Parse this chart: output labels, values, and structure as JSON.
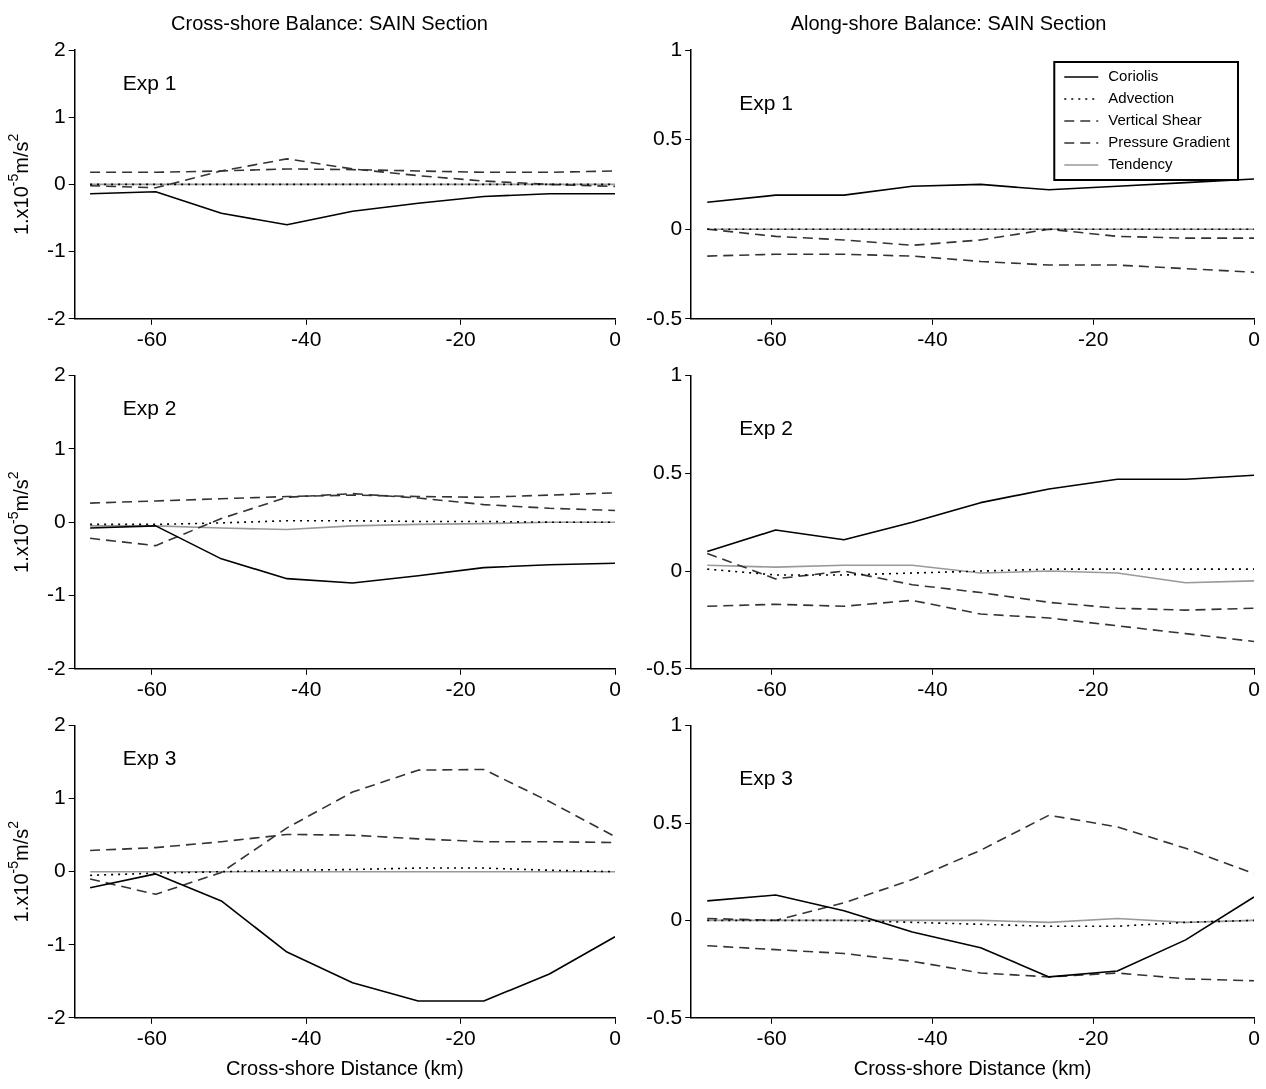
{
  "chart_data": [
    {
      "type": "line",
      "title": "Cross-shore Balance: SAIN Section",
      "ylabel": "1.x10$^{-5}$m/s$^{2}$",
      "annotations": [
        "Exp 1"
      ],
      "x": [
        -68,
        -59.5,
        -51,
        -42.5,
        -34,
        -25.5,
        -17,
        -8.5,
        0
      ],
      "xlim": [
        -70,
        0
      ],
      "xticks": [
        -60,
        -40,
        -20,
        0
      ],
      "ylim": [
        -2,
        2
      ],
      "yticks": [
        -2,
        -1,
        0,
        1,
        2
      ],
      "series": [
        {
          "color": "#000000",
          "line_style": "solid",
          "values": [
            -0.14,
            -0.11,
            -0.43,
            -0.6,
            -0.4,
            -0.28,
            -0.18,
            -0.14,
            -0.14
          ]
        },
        {
          "color": "#000000",
          "line_style": "dotted",
          "values": [
            0,
            0,
            0,
            0,
            0,
            0,
            0,
            0,
            0
          ]
        },
        {
          "color": "#333333",
          "line_style": "dashed",
          "values": [
            -0.02,
            -0.05,
            0.2,
            0.38,
            0.23,
            0.13,
            0.05,
            0,
            -0.03
          ]
        },
        {
          "color": "#333333",
          "line_style": "dashed",
          "values": [
            0.18,
            0.18,
            0.2,
            0.23,
            0.22,
            0.2,
            0.18,
            0.18,
            0.2
          ]
        },
        {
          "color": "#999999",
          "line_style": "solid",
          "values": [
            0,
            0,
            0,
            0,
            0,
            0,
            0,
            0,
            0
          ]
        }
      ]
    },
    {
      "type": "line",
      "title": "Along-shore Balance: SAIN Section",
      "annotations": [
        "Exp 1"
      ],
      "legend": "top right",
      "x": [
        -68,
        -59.5,
        -51,
        -42.5,
        -34,
        -25.5,
        -17,
        -8.5,
        0
      ],
      "xlim": [
        -70,
        0
      ],
      "xticks": [
        -60,
        -40,
        -20,
        0
      ],
      "ylim": [
        -0.5,
        1
      ],
      "yticks": [
        -0.5,
        0,
        0.5,
        1
      ],
      "series": [
        {
          "name": "Coriolis",
          "color": "#000000",
          "line_style": "solid",
          "values": [
            0.15,
            0.19,
            0.19,
            0.24,
            0.25,
            0.22,
            0.24,
            0.26,
            0.28
          ]
        },
        {
          "name": "Advection",
          "color": "#000000",
          "line_style": "dotted",
          "values": [
            0,
            0,
            0,
            0,
            0,
            0,
            0,
            0,
            0
          ]
        },
        {
          "name": "Vertical Shear",
          "color": "#333333",
          "line_style": "dashed",
          "values": [
            0,
            -0.04,
            -0.06,
            -0.09,
            -0.06,
            0,
            -0.04,
            -0.05,
            -0.05
          ]
        },
        {
          "name": "Pressure Gradient",
          "color": "#333333",
          "line_style": "dashed",
          "values": [
            -0.15,
            -0.14,
            -0.14,
            -0.15,
            -0.18,
            -0.2,
            -0.2,
            -0.22,
            -0.24
          ]
        },
        {
          "name": "Tendency",
          "color": "#999999",
          "line_style": "solid",
          "values": [
            0,
            0,
            0,
            0,
            0,
            0,
            0,
            0,
            0
          ]
        }
      ]
    },
    {
      "type": "line",
      "ylabel": "1.x10$^{-5}$m/s$^{2}$",
      "annotations": [
        "Exp 2"
      ],
      "x": [
        -68,
        -59.5,
        -51,
        -42.5,
        -34,
        -25.5,
        -17,
        -8.5,
        0
      ],
      "xlim": [
        -70,
        0
      ],
      "xticks": [
        -60,
        -40,
        -20,
        0
      ],
      "ylim": [
        -2,
        2
      ],
      "yticks": [
        -2,
        -1,
        0,
        1,
        2
      ],
      "series": [
        {
          "color": "#000000",
          "line_style": "solid",
          "values": [
            -0.08,
            -0.05,
            -0.5,
            -0.77,
            -0.83,
            -0.73,
            -0.62,
            -0.58,
            -0.56
          ]
        },
        {
          "color": "#000000",
          "line_style": "dotted",
          "values": [
            -0.03,
            -0.03,
            -0.01,
            0.02,
            0.02,
            0.01,
            0.01,
            0,
            0
          ]
        },
        {
          "color": "#333333",
          "line_style": "dashed",
          "values": [
            -0.22,
            -0.32,
            0.05,
            0.34,
            0.39,
            0.33,
            0.24,
            0.19,
            0.16
          ]
        },
        {
          "color": "#333333",
          "line_style": "dashed",
          "values": [
            0.26,
            0.29,
            0.32,
            0.35,
            0.37,
            0.35,
            0.34,
            0.37,
            0.4
          ]
        },
        {
          "color": "#999999",
          "line_style": "solid",
          "values": [
            -0.05,
            -0.05,
            -0.08,
            -0.1,
            -0.05,
            -0.03,
            -0.02,
            0,
            0
          ]
        }
      ]
    },
    {
      "type": "line",
      "annotations": [
        "Exp 2"
      ],
      "x": [
        -68,
        -59.5,
        -51,
        -42.5,
        -34,
        -25.5,
        -17,
        -8.5,
        0
      ],
      "xlim": [
        -70,
        0
      ],
      "xticks": [
        -60,
        -40,
        -20,
        0
      ],
      "ylim": [
        -0.5,
        1
      ],
      "yticks": [
        -0.5,
        0,
        0.5,
        1
      ],
      "series": [
        {
          "color": "#000000",
          "line_style": "solid",
          "values": [
            0.1,
            0.21,
            0.16,
            0.25,
            0.35,
            0.42,
            0.47,
            0.47,
            0.49
          ]
        },
        {
          "color": "#000000",
          "line_style": "dotted",
          "values": [
            0.01,
            -0.02,
            -0.02,
            -0.01,
            0,
            0.01,
            0.01,
            0.01,
            0.01
          ]
        },
        {
          "color": "#333333",
          "line_style": "dashed",
          "values": [
            0.09,
            -0.04,
            0,
            -0.07,
            -0.11,
            -0.16,
            -0.19,
            -0.2,
            -0.19
          ]
        },
        {
          "color": "#333333",
          "line_style": "dashed",
          "values": [
            -0.18,
            -0.17,
            -0.18,
            -0.15,
            -0.22,
            -0.24,
            -0.28,
            -0.32,
            -0.36
          ]
        },
        {
          "color": "#999999",
          "line_style": "solid",
          "values": [
            0.03,
            0.02,
            0.03,
            0.03,
            -0.01,
            0,
            -0.01,
            -0.06,
            -0.05
          ]
        }
      ]
    },
    {
      "type": "line",
      "ylabel": "1.x10$^{-5}$m/s$^{2}$",
      "xlabel": "Cross-shore Distance (km)",
      "annotations": [
        "Exp 3"
      ],
      "x": [
        -68,
        -59.5,
        -51,
        -42.5,
        -34,
        -25.5,
        -17,
        -8.5,
        0
      ],
      "xlim": [
        -70,
        0
      ],
      "xticks": [
        -60,
        -40,
        -20,
        0
      ],
      "ylim": [
        -2,
        2
      ],
      "yticks": [
        -2,
        -1,
        0,
        1,
        2
      ],
      "series": [
        {
          "color": "#000000",
          "line_style": "solid",
          "values": [
            -0.22,
            -0.03,
            -0.4,
            -1.1,
            -1.52,
            -1.77,
            -1.77,
            -1.4,
            -0.89
          ]
        },
        {
          "color": "#000000",
          "line_style": "dotted",
          "values": [
            -0.05,
            -0.02,
            0,
            0.02,
            0.03,
            0.05,
            0.05,
            0.02,
            0
          ]
        },
        {
          "color": "#333333",
          "line_style": "dashed",
          "values": [
            -0.1,
            -0.31,
            -0.01,
            0.6,
            1.09,
            1.39,
            1.4,
            0.96,
            0.48
          ]
        },
        {
          "color": "#333333",
          "line_style": "dashed",
          "values": [
            0.29,
            0.33,
            0.41,
            0.51,
            0.5,
            0.45,
            0.41,
            0.41,
            0.4
          ]
        },
        {
          "color": "#999999",
          "line_style": "solid",
          "values": [
            0,
            0,
            0,
            0,
            0,
            0,
            0,
            0,
            0
          ]
        }
      ]
    },
    {
      "type": "line",
      "xlabel": "Cross-shore Distance (km)",
      "annotations": [
        "Exp 3"
      ],
      "x": [
        -68,
        -59.5,
        -51,
        -42.5,
        -34,
        -25.5,
        -17,
        -8.5,
        0
      ],
      "xlim": [
        -70,
        0
      ],
      "xticks": [
        -60,
        -40,
        -20,
        0
      ],
      "ylim": [
        -0.5,
        1
      ],
      "yticks": [
        -0.5,
        0,
        0.5,
        1
      ],
      "series": [
        {
          "color": "#000000",
          "line_style": "solid",
          "values": [
            0.1,
            0.13,
            0.05,
            -0.06,
            -0.14,
            -0.29,
            -0.26,
            -0.1,
            0.12
          ]
        },
        {
          "color": "#000000",
          "line_style": "dotted",
          "values": [
            0,
            0,
            0,
            -0.01,
            -0.02,
            -0.03,
            -0.03,
            -0.01,
            0
          ]
        },
        {
          "color": "#333333",
          "line_style": "dashed",
          "values": [
            0.01,
            0,
            0.09,
            0.21,
            0.36,
            0.54,
            0.48,
            0.37,
            0.24
          ]
        },
        {
          "color": "#333333",
          "line_style": "dashed",
          "values": [
            -0.13,
            -0.15,
            -0.17,
            -0.21,
            -0.27,
            -0.29,
            -0.27,
            -0.3,
            -0.31
          ]
        },
        {
          "color": "#999999",
          "line_style": "solid",
          "values": [
            0,
            0,
            0,
            0,
            0,
            -0.01,
            0.01,
            -0.01,
            0
          ]
        }
      ]
    }
  ]
}
